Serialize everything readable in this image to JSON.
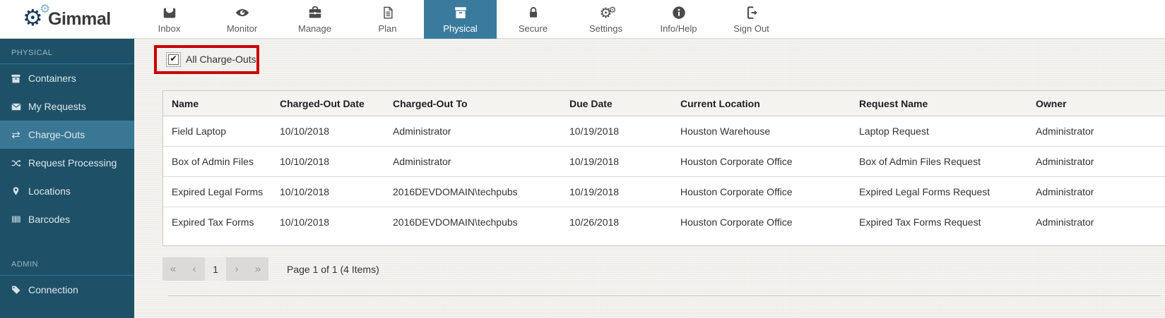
{
  "brand": {
    "name": "Gimmal",
    "logo_icon": "gears-logo-icon"
  },
  "colors": {
    "nav_active_bg": "#3a7b9d",
    "sidebar_bg": "#1e5168",
    "sidebar_selected_bg": "#3a7795",
    "annotation_red": "#c90000",
    "table_header_bg": "#f5f3f0",
    "main_bg": "#f1efeb"
  },
  "nav": {
    "items": [
      {
        "label": "Inbox",
        "icon": "inbox-icon",
        "active": false
      },
      {
        "label": "Monitor",
        "icon": "eye-icon",
        "active": false
      },
      {
        "label": "Manage",
        "icon": "briefcase-icon",
        "active": false
      },
      {
        "label": "Plan",
        "icon": "document-icon",
        "active": false
      },
      {
        "label": "Physical",
        "icon": "archive-box-icon",
        "active": true
      },
      {
        "label": "Secure",
        "icon": "lock-icon",
        "active": false
      },
      {
        "label": "Settings",
        "icon": "gears-icon",
        "active": false
      },
      {
        "label": "Info/Help",
        "icon": "info-circle-icon",
        "active": false
      },
      {
        "label": "Sign Out",
        "icon": "sign-out-icon",
        "active": false
      }
    ]
  },
  "sidebar": {
    "sections": [
      {
        "header": "PHYSICAL",
        "items": [
          {
            "label": "Containers",
            "icon": "archive-box-icon",
            "selected": false
          },
          {
            "label": "My Requests",
            "icon": "envelope-icon",
            "selected": false
          },
          {
            "label": "Charge-Outs",
            "icon": "exchange-arrows-icon",
            "selected": true
          },
          {
            "label": "Request Processing",
            "icon": "shuffle-icon",
            "selected": false
          },
          {
            "label": "Locations",
            "icon": "map-pin-icon",
            "selected": false
          },
          {
            "label": "Barcodes",
            "icon": "barcode-icon",
            "selected": false
          }
        ]
      },
      {
        "header": "ADMIN",
        "items": [
          {
            "label": "Connection",
            "icon": "tag-icon",
            "selected": false
          }
        ]
      }
    ]
  },
  "main": {
    "filter": {
      "label": "All Charge-Outs",
      "checked": true
    },
    "table": {
      "columns": [
        "Name",
        "Charged-Out Date",
        "Charged-Out To",
        "Due Date",
        "Current Location",
        "Request Name",
        "Owner"
      ],
      "rows": [
        [
          "Field Laptop",
          "10/10/2018",
          "Administrator",
          "10/19/2018",
          "Houston Warehouse",
          "Laptop Request",
          "Administrator"
        ],
        [
          "Box of Admin Files",
          "10/10/2018",
          "Administrator",
          "10/19/2018",
          "Houston Corporate Office",
          "Box of Admin Files Request",
          "Administrator"
        ],
        [
          "Expired Legal Forms",
          "10/10/2018",
          "2016DEVDOMAIN\\techpubs",
          "10/19/2018",
          "Houston Corporate Office",
          "Expired Legal Forms Request",
          "Administrator"
        ],
        [
          "Expired Tax Forms",
          "10/10/2018",
          "2016DEVDOMAIN\\techpubs",
          "10/26/2018",
          "Houston Corporate Office",
          "Expired Tax Forms Request",
          "Administrator"
        ]
      ]
    },
    "pagination": {
      "first": "«",
      "previous": "‹",
      "current_page": "1",
      "next": "›",
      "last": "»",
      "summary": "Page 1 of 1 (4 Items)"
    }
  }
}
